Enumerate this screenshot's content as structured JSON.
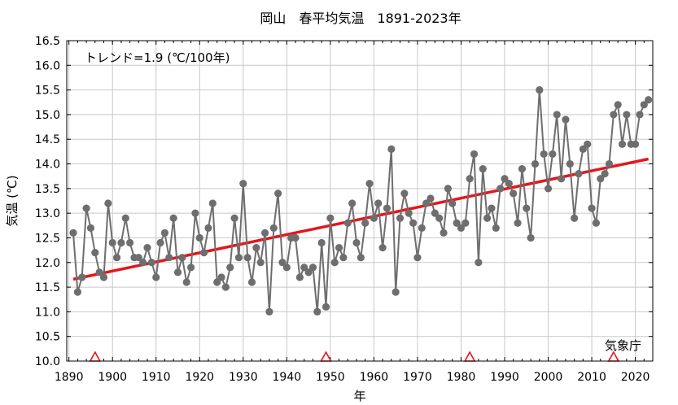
{
  "chart_data": {
    "type": "line",
    "title": "岡山　春平均気温　1891-2023年",
    "xlabel": "年",
    "ylabel": "気温 (℃)",
    "trend_label": "トレンド=1.9 (℃/100年)",
    "source_label": "気象庁",
    "xlim": [
      1889.5,
      2024
    ],
    "ylim": [
      10.0,
      16.5
    ],
    "grid": true,
    "x_ticks": [
      1890,
      1900,
      1910,
      1920,
      1930,
      1940,
      1950,
      1960,
      1970,
      1980,
      1990,
      2000,
      2010,
      2020
    ],
    "y_ticks": [
      10.0,
      10.5,
      11.0,
      11.5,
      12.0,
      12.5,
      13.0,
      13.5,
      14.0,
      14.5,
      15.0,
      15.5,
      16.0,
      16.5
    ],
    "series": [
      {
        "x_start": 1891,
        "values": [
          12.6,
          11.4,
          11.7,
          13.1,
          12.7,
          12.2,
          11.8,
          11.7,
          13.2,
          12.4,
          12.1,
          12.4,
          12.9,
          12.4,
          12.1,
          12.1,
          12.0,
          12.3,
          12.0,
          11.7,
          12.4,
          12.6,
          12.1,
          12.9,
          11.8,
          12.1,
          11.6,
          11.9,
          13.0,
          12.5,
          12.2,
          12.7,
          13.2,
          11.6,
          11.7,
          11.5,
          11.9,
          12.9,
          12.1,
          13.6,
          12.1,
          11.6,
          12.3,
          12.0,
          12.6,
          11.0,
          12.7,
          13.4,
          12.0,
          11.9,
          12.5,
          12.5,
          11.7,
          11.9,
          11.8,
          11.9,
          11.0,
          12.4,
          11.1,
          12.9,
          12.0,
          12.3,
          12.1,
          12.8,
          13.2,
          12.4,
          12.1,
          12.8,
          13.6,
          12.9,
          13.2,
          12.3,
          13.1,
          14.3,
          11.4,
          12.9,
          13.4,
          13.0,
          12.8,
          12.1,
          12.7,
          13.2,
          13.3,
          13.0,
          12.9,
          12.6,
          13.5,
          13.2,
          12.8,
          12.7,
          12.8,
          13.7,
          14.2,
          12.0,
          13.9,
          12.9,
          13.1,
          12.7,
          13.5,
          13.7,
          13.6,
          13.4,
          12.8,
          13.9,
          13.1,
          12.5,
          14.0,
          15.5,
          14.2,
          13.5,
          14.2,
          15.0,
          13.7,
          14.9,
          14.0,
          12.9,
          13.8,
          14.3,
          14.4,
          13.1,
          12.8,
          13.7,
          13.8,
          14.0,
          15.0,
          15.2,
          14.4,
          15.0,
          14.4,
          14.4,
          15.0,
          15.2,
          15.3
        ]
      }
    ],
    "trend": {
      "x": [
        1891,
        2023
      ],
      "y": [
        11.66,
        14.1
      ]
    },
    "markers": [
      1896,
      1949,
      1982,
      2015
    ],
    "colors": {
      "series": "#6e6e6e",
      "trend": "#e8141a",
      "marker": "#e8141a",
      "grid": "#c8c8c8"
    }
  }
}
